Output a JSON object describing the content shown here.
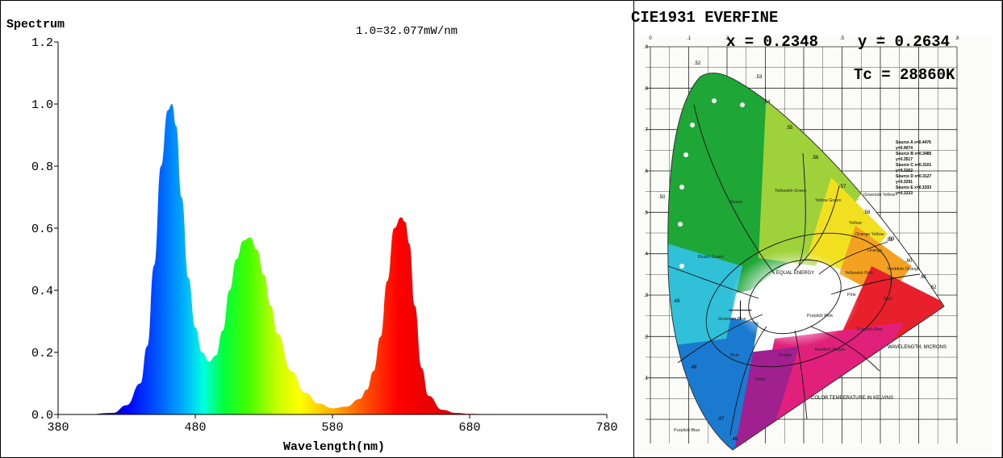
{
  "chart_data": [
    {
      "type": "area",
      "title": "Spectrum",
      "annotation": "1.0=32.077mW/nm",
      "xlabel": "Wavelength(nm)",
      "ylabel": "",
      "xlim": [
        380,
        780
      ],
      "ylim": [
        0,
        1.2
      ],
      "x_ticks": [
        380,
        480,
        580,
        680,
        780
      ],
      "y_ticks": [
        0.0,
        0.2,
        0.4,
        0.6,
        0.8,
        1.0,
        1.2
      ],
      "x_tick_labels": [
        "380",
        "480",
        "580",
        "680",
        "780"
      ],
      "y_tick_labels": [
        "0.0",
        "0.2",
        "0.4",
        "0.6",
        "0.8",
        "1.0",
        "1.2"
      ],
      "grid": false,
      "fill": "wavelength-colored spectrum",
      "series": [
        {
          "x": [
            380,
            400,
            420,
            430,
            440,
            445,
            450,
            455,
            460,
            463,
            466,
            470,
            475,
            480,
            485,
            490,
            495,
            500,
            505,
            510,
            515,
            520,
            525,
            530,
            535,
            540,
            550,
            560,
            570,
            580,
            590,
            600,
            605,
            610,
            615,
            620,
            625,
            630,
            633,
            636,
            640,
            645,
            650,
            660,
            670,
            680,
            700,
            740,
            780
          ],
          "y": [
            0.0,
            0.0,
            0.005,
            0.03,
            0.1,
            0.22,
            0.48,
            0.8,
            0.98,
            1.0,
            0.93,
            0.7,
            0.44,
            0.28,
            0.2,
            0.17,
            0.19,
            0.27,
            0.4,
            0.5,
            0.56,
            0.57,
            0.53,
            0.45,
            0.35,
            0.26,
            0.14,
            0.07,
            0.035,
            0.02,
            0.025,
            0.05,
            0.08,
            0.14,
            0.25,
            0.43,
            0.6,
            0.635,
            0.62,
            0.55,
            0.35,
            0.15,
            0.06,
            0.015,
            0.005,
            0.002,
            0.0,
            0.0,
            0.0
          ]
        }
      ]
    },
    {
      "type": "scatter",
      "title": "CIE1931 EVERFINE",
      "x_label": "x = 0.2348",
      "y_label": "y = 0.2634",
      "tc_label": "Tc = 28860K",
      "point": {
        "x": 0.2348,
        "y": 0.2634
      },
      "xlim": [
        0,
        0.8
      ],
      "ylim": [
        0,
        0.9
      ],
      "axis_tick_labels_x": [
        "0",
        ".1",
        ".2",
        ".3",
        ".4",
        ".5",
        ".6",
        ".7",
        ".8"
      ],
      "axis_tick_labels_y": [
        ".1",
        ".2",
        ".3",
        ".4",
        ".5",
        ".6",
        ".7",
        ".8",
        ".9"
      ],
      "wavelength_labels": [
        ".46",
        ".47",
        ".48",
        ".49",
        ".50",
        ".51",
        ".52",
        ".53",
        ".54",
        ".55",
        ".56",
        ".57",
        ".58",
        ".59",
        ".60",
        ".61",
        ".62"
      ],
      "region_labels": [
        "Green",
        "Yellowish Green",
        "Yellow Green",
        "Greenish Yellow",
        "Yellow",
        "Orange Yellow",
        "Orange",
        "Reddish Orange",
        "Red",
        "Pink",
        "Yellowish Pink",
        "Purplish Pink",
        "Purplish Red",
        "Reddish Purple",
        "Purple",
        "Violet",
        "Blue",
        "Greenish Blue",
        "Bluish Green",
        "Purplish Blue"
      ],
      "source_block": [
        "Source A x=0.4476",
        "y=0.4074",
        "Source B x=0.3485",
        "y=0.3517",
        "Source C x=0.3101",
        "y=0.3162",
        "Source D x=0.3127",
        "y=0.3291",
        "Source E x=0.3333",
        "y=0.3333"
      ],
      "misc_labels": [
        "EQUAL ENERGY",
        "WAVELENGTH, MICRONS",
        "COLOR TEMPERATURE IN KELVINS"
      ]
    }
  ]
}
